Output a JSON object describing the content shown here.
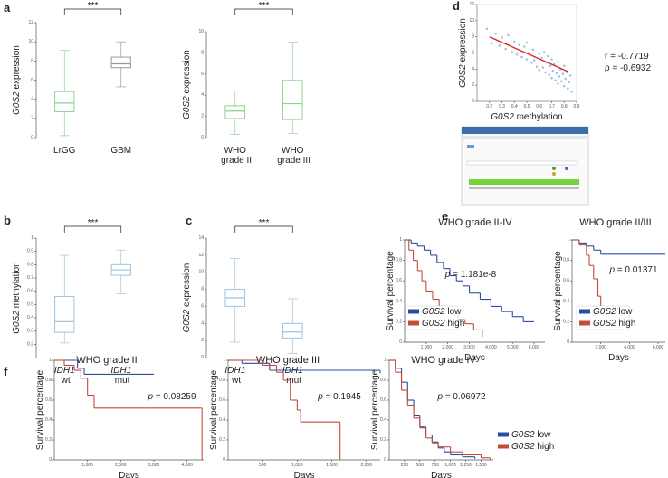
{
  "chart_data": [
    {
      "type": "box",
      "panel": "a",
      "ylabel": "G0S2 expression",
      "categories": [
        "LrGG",
        "GBM"
      ],
      "colors": [
        "#8fd18f",
        "#999999"
      ],
      "values": [
        {
          "min": 0.2,
          "q1": 2.7,
          "median": 3.6,
          "q3": 4.8,
          "max": 9.1
        },
        {
          "min": 5.3,
          "q1": 7.3,
          "median": 7.7,
          "q3": 8.4,
          "max": 10.0
        }
      ],
      "ylim": [
        0,
        12
      ],
      "yticks": [
        0,
        2,
        4,
        6,
        8,
        10,
        12
      ],
      "annotation": "***"
    },
    {
      "type": "box",
      "ylabel": "G0S2 expression",
      "categories": [
        "WHO grade II",
        "WHO grade III"
      ],
      "colors": [
        "#8fd18f",
        "#8fd18f"
      ],
      "values": [
        {
          "min": 0.3,
          "q1": 1.8,
          "median": 2.5,
          "q3": 3.0,
          "max": 4.4
        },
        {
          "min": 0.4,
          "q1": 1.7,
          "median": 3.2,
          "q3": 5.4,
          "max": 9.0
        }
      ],
      "ylim": [
        0,
        10
      ],
      "yticks": [
        0,
        2,
        4,
        6,
        8,
        10
      ],
      "annotation": "***"
    },
    {
      "type": "box",
      "panel": "b",
      "ylabel": "G0S2 methylation",
      "categories": [
        "IDH1 wt",
        "IDH1 mut"
      ],
      "colors": [
        "#9cc3df",
        "#9cc3df"
      ],
      "values": [
        {
          "min": 0.21,
          "q1": 0.29,
          "median": 0.37,
          "q3": 0.56,
          "max": 0.87
        },
        {
          "min": 0.58,
          "q1": 0.72,
          "median": 0.76,
          "q3": 0.8,
          "max": 0.91
        }
      ],
      "ylim": [
        0.1,
        1
      ],
      "yticks": [
        0.2,
        0.3,
        0.4,
        0.5,
        0.6,
        0.7,
        0.8,
        0.9,
        1
      ],
      "annotation": "***"
    },
    {
      "type": "box",
      "panel": "c",
      "ylabel": "G0S2 expression",
      "categories": [
        "IDH1 wt",
        "IDH1 mut"
      ],
      "colors": [
        "#9cc3df",
        "#9cc3df"
      ],
      "values": [
        {
          "min": 1.8,
          "q1": 6.0,
          "median": 7.0,
          "q3": 8.0,
          "max": 11.6
        },
        {
          "min": 0.5,
          "q1": 2.3,
          "median": 3.0,
          "q3": 4.0,
          "max": 6.9
        }
      ],
      "ylim": [
        0,
        14
      ],
      "yticks": [
        0,
        2,
        4,
        6,
        8,
        10,
        12,
        14
      ],
      "annotation": "***"
    },
    {
      "type": "scatter",
      "panel": "d",
      "xlabel": "G0S2 methylation",
      "ylabel": "G0S2 expression",
      "color": "#8ab8d8",
      "x": [
        0.18,
        0.22,
        0.25,
        0.28,
        0.3,
        0.33,
        0.35,
        0.38,
        0.4,
        0.42,
        0.44,
        0.46,
        0.48,
        0.5,
        0.5,
        0.52,
        0.54,
        0.55,
        0.56,
        0.58,
        0.6,
        0.6,
        0.62,
        0.63,
        0.64,
        0.65,
        0.66,
        0.67,
        0.68,
        0.69,
        0.7,
        0.7,
        0.71,
        0.72,
        0.73,
        0.74,
        0.75,
        0.75,
        0.76,
        0.77,
        0.78,
        0.79,
        0.8,
        0.8,
        0.81,
        0.82,
        0.83,
        0.84,
        0.85,
        0.86
      ],
      "values": [
        9.0,
        7.2,
        8.4,
        6.9,
        7.9,
        6.5,
        8.2,
        6.1,
        7.4,
        5.8,
        7.0,
        5.5,
        6.8,
        5.2,
        7.3,
        6.0,
        4.8,
        6.4,
        5.1,
        4.3,
        5.9,
        3.9,
        5.4,
        4.2,
        6.1,
        3.6,
        4.8,
        5.6,
        3.3,
        4.4,
        2.9,
        5.2,
        3.8,
        4.6,
        2.6,
        3.5,
        4.9,
        2.2,
        3.1,
        4.0,
        2.5,
        3.4,
        1.9,
        4.4,
        2.8,
        3.6,
        1.6,
        2.4,
        3.2,
        1.2
      ],
      "fit": {
        "x": [
          0.2,
          0.83
        ],
        "values": [
          8.0,
          3.7
        ],
        "color": "#d62728"
      },
      "xlim": [
        0.1,
        0.9
      ],
      "xticks": [
        0.2,
        0.3,
        0.4,
        0.5,
        0.6,
        0.7,
        0.8,
        0.9
      ],
      "ylim": [
        0,
        12
      ],
      "yticks": [
        0,
        2,
        4,
        6,
        8,
        10,
        12
      ],
      "annotations": [
        "r = -0.7719",
        "ρ = -0.6932"
      ]
    },
    {
      "type": "km",
      "panel": "e",
      "title": "WHO grade II-IV",
      "xlabel": "Days",
      "ylabel": "Survival percentage",
      "annotation": "p = 1.181e-8",
      "legend": "lower left",
      "series": [
        {
          "name": "G0S2 low",
          "color": "#2b4da0",
          "x": [
            0,
            300,
            600,
            900,
            1200,
            1500,
            1800,
            2100,
            2400,
            2700,
            3000,
            3500,
            4000,
            4500,
            5000,
            5500,
            6000
          ],
          "values": [
            1,
            0.97,
            0.94,
            0.9,
            0.85,
            0.78,
            0.72,
            0.65,
            0.6,
            0.55,
            0.48,
            0.42,
            0.35,
            0.3,
            0.25,
            0.2,
            0.2
          ]
        },
        {
          "name": "G0S2 high",
          "color": "#c44a3a",
          "x": [
            0,
            200,
            400,
            600,
            800,
            1000,
            1300,
            1600,
            2000,
            2400,
            2800,
            3200,
            3600
          ],
          "values": [
            1,
            0.9,
            0.8,
            0.7,
            0.6,
            0.5,
            0.42,
            0.35,
            0.28,
            0.22,
            0.18,
            0.12,
            0.05
          ]
        }
      ],
      "xlim": [
        0,
        6500
      ],
      "xticks": [
        {
          "value": 1000,
          "label": "1,000"
        },
        {
          "value": 2000,
          "label": "2,000"
        },
        {
          "value": 3000,
          "label": "3,000"
        },
        {
          "value": 4000,
          "label": "4,000"
        },
        {
          "value": 5000,
          "label": "5,000"
        },
        {
          "value": 6000,
          "label": "6,000"
        }
      ],
      "ylim": [
        0,
        1
      ],
      "yticks": [
        0,
        0.2,
        0.4,
        0.6,
        0.8,
        1
      ]
    },
    {
      "type": "km",
      "title": "WHO grade II/III",
      "xlabel": "Days",
      "ylabel": "Survival percentage",
      "annotation": "p = 0.01371",
      "legend": "lower right",
      "series": [
        {
          "name": "G0S2 low",
          "color": "#2b4da0",
          "x": [
            0,
            500,
            1000,
            1500,
            2000,
            6500
          ],
          "values": [
            1,
            0.97,
            0.94,
            0.9,
            0.86,
            0.86
          ]
        },
        {
          "name": "G0S2 high",
          "color": "#c44a3a",
          "x": [
            0,
            500,
            1000,
            1200,
            1500,
            1800,
            2000,
            2200,
            2400
          ],
          "values": [
            1,
            0.95,
            0.85,
            0.75,
            0.62,
            0.45,
            0.35,
            0.2,
            0.15
          ]
        }
      ],
      "xlim": [
        0,
        6500
      ],
      "xticks": [
        {
          "value": 2000,
          "label": "2,000"
        },
        {
          "value": 4000,
          "label": "4,000"
        },
        {
          "value": 6000,
          "label": "6,000"
        }
      ],
      "ylim": [
        0,
        1
      ],
      "yticks": [
        0,
        0.2,
        0.4,
        0.6,
        0.8,
        1
      ]
    },
    {
      "type": "km",
      "panel": "f",
      "title": "WHO grade II",
      "xlabel": "Days",
      "ylabel": "Survival percentage",
      "annotation": "p = 0.08259",
      "series": [
        {
          "color": "#2b4da0",
          "x": [
            0,
            700,
            900,
            3000
          ],
          "values": [
            1,
            0.92,
            0.86,
            0.86
          ]
        },
        {
          "color": "#c44a3a",
          "x": [
            0,
            300,
            600,
            800,
            1000,
            1200,
            4400,
            4450
          ],
          "values": [
            1,
            0.95,
            0.9,
            0.82,
            0.65,
            0.52,
            0.52,
            0
          ]
        }
      ],
      "xlim": [
        0,
        4500
      ],
      "xticks": [
        {
          "value": 1000,
          "label": "1,000"
        },
        {
          "value": 2000,
          "label": "2,000"
        },
        {
          "value": 3000,
          "label": "3,000"
        },
        {
          "value": 4000,
          "label": "4,000"
        }
      ],
      "ylim": [
        0,
        1
      ],
      "yticks": [
        0,
        0.2,
        0.4,
        0.6,
        0.8,
        1
      ]
    },
    {
      "type": "km",
      "title": "WHO grade III",
      "xlabel": "Days",
      "ylabel": "Survival percentage",
      "annotation": "p = 0.1945",
      "series": [
        {
          "color": "#2b4da0",
          "x": [
            0,
            200,
            600,
            2200
          ],
          "values": [
            1,
            0.97,
            0.9,
            0.87
          ]
        },
        {
          "color": "#c44a3a",
          "x": [
            0,
            500,
            700,
            800,
            900,
            1000,
            1050,
            1600,
            1620
          ],
          "values": [
            1,
            0.95,
            0.88,
            0.8,
            0.6,
            0.5,
            0.38,
            0.38,
            0
          ]
        }
      ],
      "xlim": [
        0,
        2200
      ],
      "xticks": [
        500,
        {
          "value": 1000,
          "label": "1,000"
        },
        {
          "value": 1500,
          "label": "1,500"
        },
        {
          "value": 2000,
          "label": "2,000"
        }
      ],
      "ylim": [
        0,
        1
      ],
      "yticks": [
        0,
        0.2,
        0.4,
        0.6,
        0.8,
        1
      ]
    },
    {
      "type": "km",
      "title": "WHO grade IV",
      "xlabel": "Days",
      "ylabel": "Survival percentage",
      "annotation": "p = 0.06972",
      "legend": "right",
      "series": [
        {
          "name": "G0S2 low",
          "color": "#2b4da0",
          "x": [
            0,
            100,
            200,
            300,
            400,
            500,
            600,
            700,
            800,
            900,
            1000,
            1200,
            1400
          ],
          "values": [
            1,
            0.92,
            0.78,
            0.6,
            0.45,
            0.33,
            0.25,
            0.18,
            0.12,
            0.08,
            0.05,
            0.03,
            0.01
          ]
        },
        {
          "name": "G0S2 high",
          "color": "#c44a3a",
          "x": [
            0,
            100,
            200,
            300,
            400,
            500,
            600,
            700,
            800,
            1000,
            1200,
            1500,
            1650
          ],
          "values": [
            1,
            0.88,
            0.7,
            0.55,
            0.42,
            0.32,
            0.22,
            0.17,
            0.13,
            0.08,
            0.05,
            0.02,
            0
          ]
        }
      ],
      "xlim": [
        0,
        1700
      ],
      "xticks": [
        250,
        500,
        750,
        {
          "value": 1000,
          "label": "1,000"
        },
        {
          "value": 1250,
          "label": "1,250"
        },
        {
          "value": 1500,
          "label": "1,500"
        }
      ],
      "ylim": [
        0,
        1
      ],
      "yticks": [
        0,
        0.2,
        0.4,
        0.6,
        0.8,
        1
      ]
    }
  ]
}
